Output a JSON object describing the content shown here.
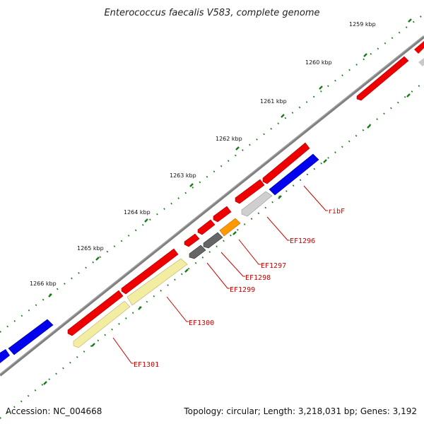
{
  "header": {
    "title": "Enterococcus faecalis V583, complete genome"
  },
  "footer": {
    "accession": "Accession: NC_004668",
    "summary": "Topology: circular; Length: 3,218,031 bp; Genes: 3,192"
  },
  "scale_labels": [
    "1259 kbp",
    "1260 kbp",
    "1261 kbp",
    "1262 kbp",
    "1263 kbp",
    "1264 kbp",
    "1265 kbp",
    "1266 kbp"
  ],
  "gene_labels": [
    "ribF",
    "EF1296",
    "EF1297",
    "EF1298",
    "EF1299",
    "EF1300",
    "EF1301"
  ],
  "colors": {
    "forward_strand": "#ff0000",
    "reverse_strand_blue": "#0000ee",
    "reverse_strand_grey": "#c8c8c8",
    "dark_grey": "#666666",
    "orange": "#ff9900",
    "pale_yellow": "#f2eda0",
    "tick_green": "#1a7a1a",
    "backbone": "#888888",
    "label_red": "#cc0000"
  }
}
